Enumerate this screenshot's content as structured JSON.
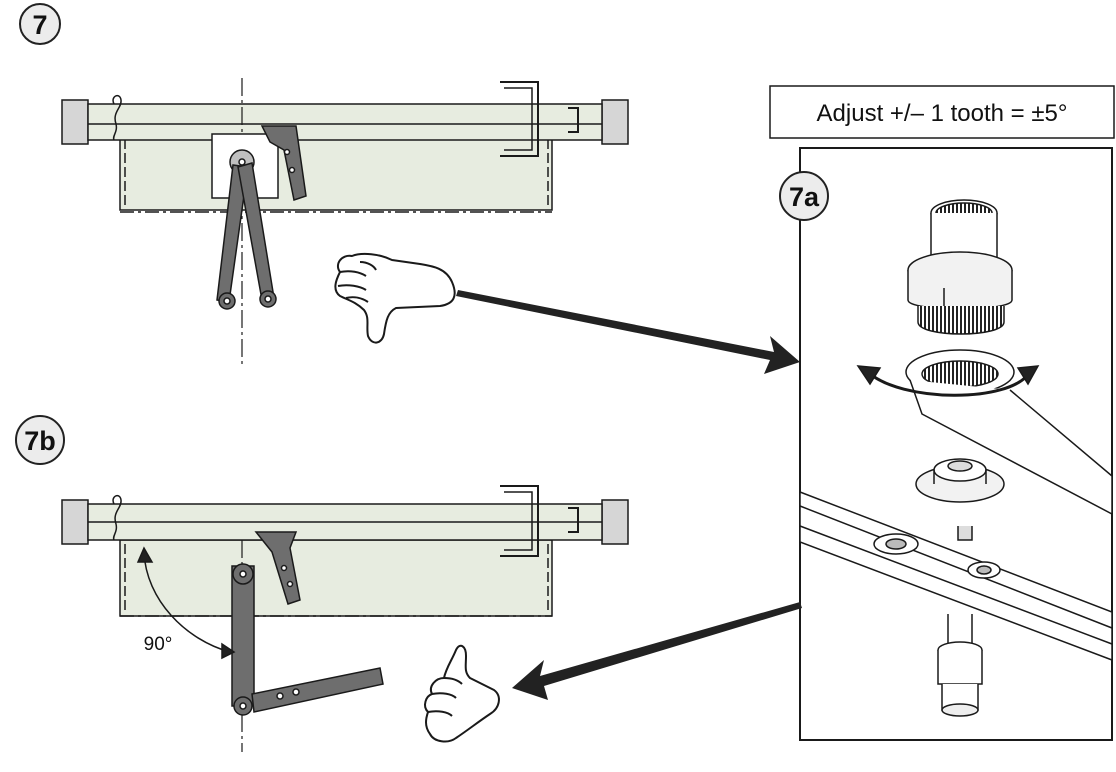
{
  "steps": {
    "step_7": "7",
    "step_7a": "7a",
    "step_7b": "7b"
  },
  "callout": "Adjust +/– 1 tooth = ±5°",
  "angle_label": "90°",
  "icons": {
    "wrong": "thumbs-down-icon",
    "correct": "thumbs-up-icon"
  },
  "colors": {
    "line": "#1a1a1a",
    "body_fill": "#e7ece0",
    "cap_fill": "#d6d6d6",
    "arm_fill": "#6e6e6e",
    "arrow_fill": "#222222"
  }
}
